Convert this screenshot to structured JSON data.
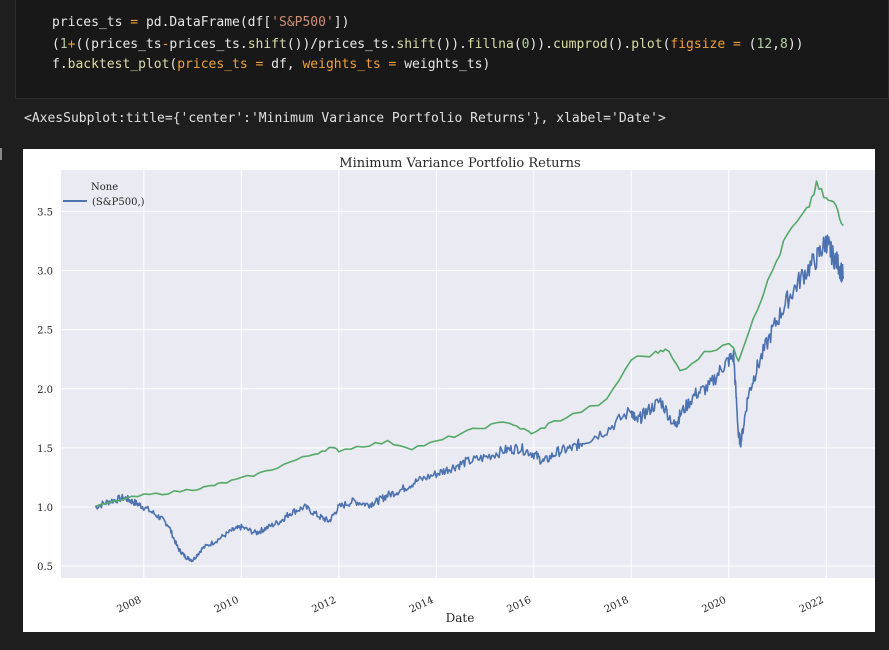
{
  "code": {
    "line1": "prices_ts = pd.DataFrame(df['S&P500'])",
    "line2": "(1+((prices_ts-prices_ts.shift())/prices_ts.shift()).fillna(0)).cumprod().plot(figsize = (12,8))",
    "line3": "f.backtest_plot(prices_ts = df, weights_ts = weights_ts)"
  },
  "output_text": "<AxesSubplot:title={'center':'Minimum Variance Portfolio Returns'}, xlabel='Date'>",
  "colors": {
    "blue_series": "#4c72b0",
    "green_series": "#55a868",
    "plot_bg": "#eaeaf2"
  },
  "chart_data": {
    "type": "line",
    "title": "Minimum Variance Portfolio Returns",
    "xlabel": "Date",
    "ylabel": "",
    "xlim": [
      2006.3,
      2023.0
    ],
    "ylim": [
      0.4,
      3.85
    ],
    "xticks": [
      "2008",
      "2010",
      "2012",
      "2014",
      "2016",
      "2018",
      "2020",
      "2022"
    ],
    "yticks": [
      "0.5",
      "1.0",
      "1.5",
      "2.0",
      "2.5",
      "3.0",
      "3.5"
    ],
    "grid": true,
    "legend_position": "top-left",
    "legend_title": "None",
    "series": [
      {
        "name": "(S&P500,)",
        "color": "#4c72b0",
        "x": [
          2007.0,
          2007.3,
          2007.6,
          2007.8,
          2008.0,
          2008.3,
          2008.5,
          2008.7,
          2008.85,
          2009.0,
          2009.2,
          2009.5,
          2009.8,
          2010.0,
          2010.3,
          2010.5,
          2010.8,
          2011.0,
          2011.3,
          2011.6,
          2011.8,
          2012.0,
          2012.3,
          2012.6,
          2012.8,
          2013.0,
          2013.3,
          2013.6,
          2014.0,
          2014.3,
          2014.6,
          2015.0,
          2015.4,
          2015.7,
          2016.0,
          2016.2,
          2016.5,
          2016.8,
          2017.0,
          2017.5,
          2018.0,
          2018.1,
          2018.3,
          2018.6,
          2018.9,
          2019.0,
          2019.3,
          2019.6,
          2019.9,
          2020.1,
          2020.2,
          2020.25,
          2020.4,
          2020.6,
          2020.9,
          2021.2,
          2021.5,
          2021.8,
          2022.0,
          2022.1,
          2022.25,
          2022.35
        ],
        "values": [
          1.0,
          1.05,
          1.08,
          1.04,
          1.0,
          0.92,
          0.85,
          0.65,
          0.58,
          0.55,
          0.65,
          0.72,
          0.8,
          0.83,
          0.78,
          0.82,
          0.88,
          0.95,
          1.0,
          0.92,
          0.88,
          1.0,
          1.05,
          1.02,
          1.05,
          1.1,
          1.15,
          1.22,
          1.28,
          1.33,
          1.38,
          1.42,
          1.48,
          1.5,
          1.45,
          1.38,
          1.47,
          1.5,
          1.55,
          1.65,
          1.82,
          1.72,
          1.8,
          1.9,
          1.68,
          1.78,
          1.95,
          2.02,
          2.2,
          2.28,
          1.6,
          1.55,
          1.95,
          2.2,
          2.5,
          2.75,
          2.95,
          3.1,
          3.25,
          3.15,
          3.05,
          2.95
        ]
      },
      {
        "name": "",
        "color": "#55a868",
        "x": [
          2007.0,
          2007.5,
          2008.0,
          2008.5,
          2009.0,
          2009.3,
          2009.6,
          2010.0,
          2010.5,
          2011.0,
          2011.5,
          2011.8,
          2012.0,
          2012.5,
          2013.0,
          2013.5,
          2014.0,
          2014.5,
          2015.0,
          2015.5,
          2015.8,
          2016.0,
          2016.3,
          2016.8,
          2017.5,
          2018.0,
          2018.5,
          2018.7,
          2019.0,
          2019.5,
          2020.0,
          2020.2,
          2020.5,
          2020.9,
          2021.2,
          2021.6,
          2021.8,
          2022.0,
          2022.2,
          2022.35
        ],
        "values": [
          1.0,
          1.06,
          1.1,
          1.12,
          1.15,
          1.17,
          1.2,
          1.24,
          1.3,
          1.38,
          1.45,
          1.5,
          1.48,
          1.52,
          1.55,
          1.5,
          1.55,
          1.62,
          1.68,
          1.72,
          1.65,
          1.62,
          1.7,
          1.78,
          1.9,
          2.25,
          2.3,
          2.35,
          2.15,
          2.3,
          2.4,
          2.25,
          2.6,
          3.0,
          3.3,
          3.5,
          3.72,
          3.6,
          3.55,
          3.38
        ]
      }
    ]
  }
}
